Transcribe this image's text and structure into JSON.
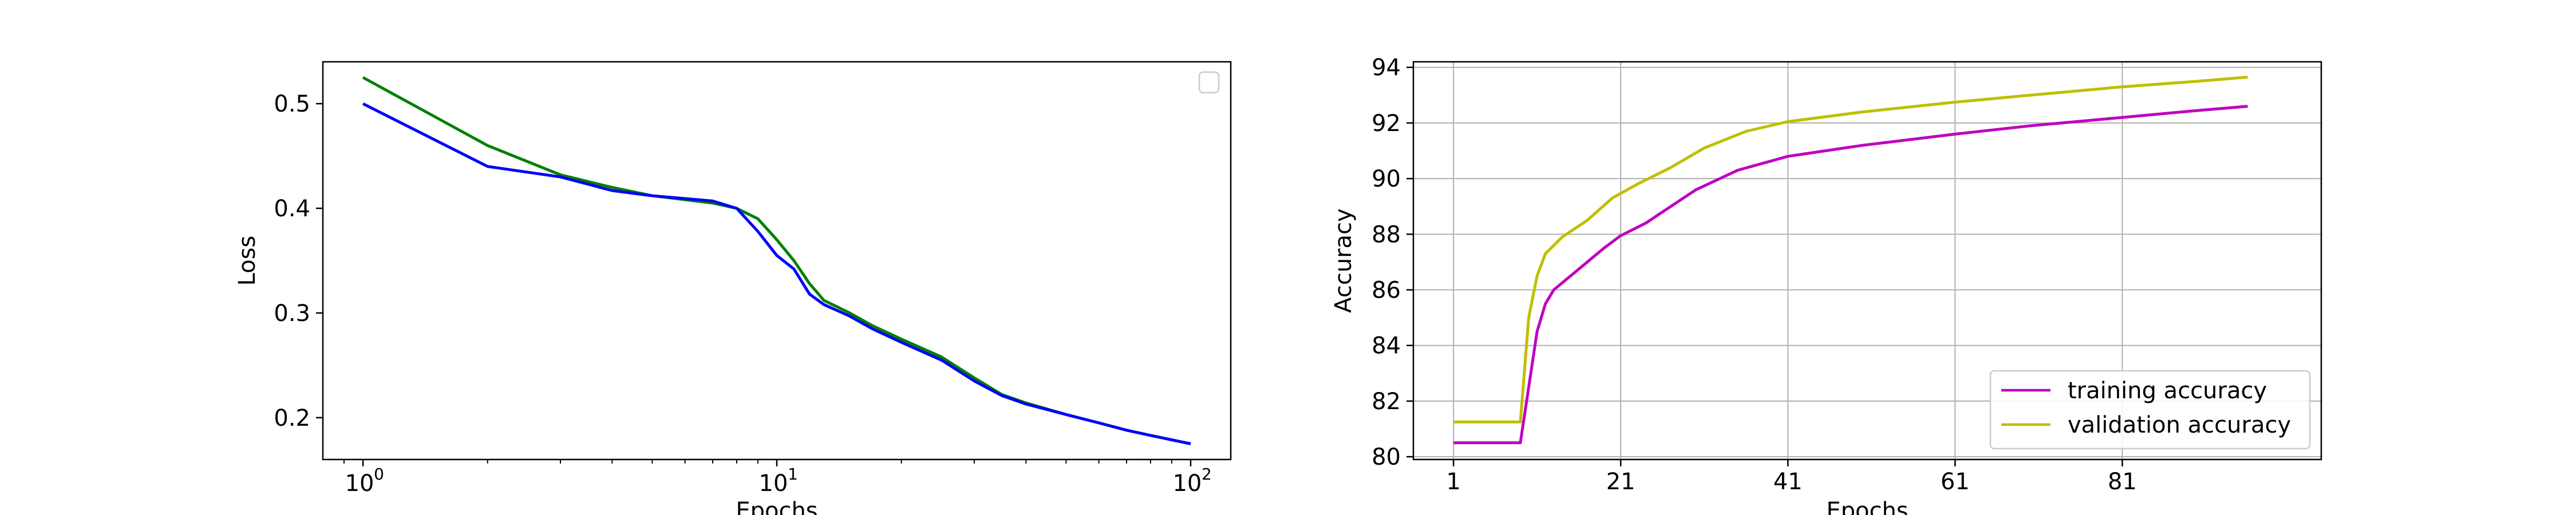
{
  "chart_data": [
    {
      "type": "line",
      "xscale": "log",
      "xlabel": "Epochs",
      "ylabel": "Loss",
      "xlim": [
        0.8,
        125
      ],
      "ylim": [
        0.16,
        0.54
      ],
      "xticks": [
        1,
        10,
        100
      ],
      "xtick_labels": [
        {
          "base": "10",
          "exp": "0"
        },
        {
          "base": "10",
          "exp": "1"
        },
        {
          "base": "10",
          "exp": "2"
        }
      ],
      "yticks": [
        0.2,
        0.3,
        0.4,
        0.5
      ],
      "ytick_labels": [
        "0.2",
        "0.3",
        "0.4",
        "0.5"
      ],
      "grid": false,
      "legend": {
        "position": "upper-right",
        "entries": []
      },
      "series": [
        {
          "color": "#008000",
          "points": [
            [
              1,
              0.525
            ],
            [
              2,
              0.46
            ],
            [
              3,
              0.432
            ],
            [
              4,
              0.42
            ],
            [
              5,
              0.412
            ],
            [
              7,
              0.405
            ],
            [
              8,
              0.4
            ],
            [
              9,
              0.39
            ],
            [
              10,
              0.37
            ],
            [
              11,
              0.35
            ],
            [
              12,
              0.328
            ],
            [
              13,
              0.312
            ],
            [
              15,
              0.3
            ],
            [
              17,
              0.288
            ],
            [
              20,
              0.275
            ],
            [
              25,
              0.258
            ],
            [
              30,
              0.238
            ],
            [
              35,
              0.222
            ],
            [
              40,
              0.214
            ],
            [
              50,
              0.203
            ],
            [
              60,
              0.195
            ],
            [
              70,
              0.188
            ],
            [
              80,
              0.183
            ],
            [
              100,
              0.175
            ]
          ]
        },
        {
          "color": "#0000ff",
          "points": [
            [
              1,
              0.5
            ],
            [
              2,
              0.44
            ],
            [
              3,
              0.43
            ],
            [
              4,
              0.417
            ],
            [
              5,
              0.412
            ],
            [
              7,
              0.407
            ],
            [
              8,
              0.4
            ],
            [
              9,
              0.378
            ],
            [
              10,
              0.355
            ],
            [
              11,
              0.342
            ],
            [
              12,
              0.318
            ],
            [
              13,
              0.308
            ],
            [
              15,
              0.297
            ],
            [
              17,
              0.285
            ],
            [
              20,
              0.272
            ],
            [
              25,
              0.255
            ],
            [
              30,
              0.235
            ],
            [
              35,
              0.221
            ],
            [
              40,
              0.213
            ],
            [
              50,
              0.203
            ],
            [
              60,
              0.195
            ],
            [
              70,
              0.188
            ],
            [
              80,
              0.183
            ],
            [
              100,
              0.175
            ]
          ]
        }
      ]
    },
    {
      "type": "line",
      "xscale": "linear",
      "xlabel": "Epochs",
      "ylabel": "Accuracy",
      "xlim": [
        -3.8,
        104.8
      ],
      "ylim": [
        79.9,
        94.2
      ],
      "xticks": [
        1,
        21,
        41,
        61,
        81
      ],
      "xtick_labels": [
        "1",
        "21",
        "41",
        "61",
        "81"
      ],
      "yticks": [
        80,
        82,
        84,
        86,
        88,
        90,
        92,
        94
      ],
      "ytick_labels": [
        "80",
        "82",
        "84",
        "86",
        "88",
        "90",
        "92",
        "94"
      ],
      "grid": true,
      "legend": {
        "position": "lower-right"
      },
      "series": [
        {
          "name": "training accuracy",
          "color": "#bf00bf",
          "points": [
            [
              1,
              80.5
            ],
            [
              9,
              80.5
            ],
            [
              10,
              82.5
            ],
            [
              11,
              84.5
            ],
            [
              12,
              85.5
            ],
            [
              13,
              86
            ],
            [
              15,
              86.5
            ],
            [
              17,
              87
            ],
            [
              19,
              87.5
            ],
            [
              21,
              87.95
            ],
            [
              24,
              88.4
            ],
            [
              27,
              89
            ],
            [
              30,
              89.6
            ],
            [
              35,
              90.3
            ],
            [
              41,
              90.8
            ],
            [
              50,
              91.2
            ],
            [
              61,
              91.6
            ],
            [
              70,
              91.9
            ],
            [
              81,
              92.2
            ],
            [
              90,
              92.45
            ],
            [
              96,
              92.6
            ]
          ]
        },
        {
          "name": "validation accuracy",
          "color": "#bfbf00",
          "points": [
            [
              1,
              81.25
            ],
            [
              9,
              81.25
            ],
            [
              10,
              85
            ],
            [
              11,
              86.5
            ],
            [
              12,
              87.3
            ],
            [
              14,
              87.9
            ],
            [
              17,
              88.5
            ],
            [
              20,
              89.3
            ],
            [
              23,
              89.8
            ],
            [
              27,
              90.4
            ],
            [
              31,
              91.1
            ],
            [
              36,
              91.7
            ],
            [
              41,
              92.05
            ],
            [
              50,
              92.4
            ],
            [
              61,
              92.75
            ],
            [
              70,
              93
            ],
            [
              81,
              93.3
            ],
            [
              90,
              93.5
            ],
            [
              96,
              93.65
            ]
          ]
        }
      ]
    }
  ]
}
